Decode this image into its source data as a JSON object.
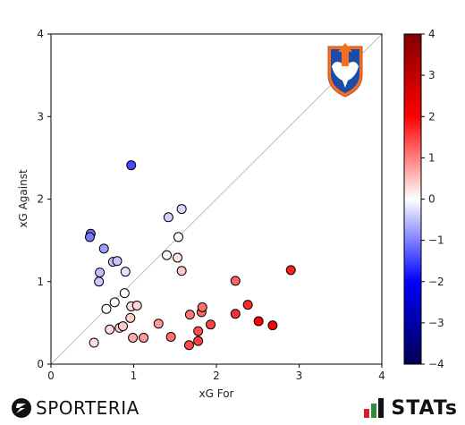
{
  "chart_data": {
    "type": "scatter",
    "title": "",
    "xlabel": "xG For",
    "ylabel": "xG Against",
    "xlim": [
      0,
      4
    ],
    "ylim": [
      0,
      4
    ],
    "xticks": [
      "0",
      "1",
      "2",
      "3",
      "4"
    ],
    "yticks": [
      "0",
      "1",
      "2",
      "3",
      "4"
    ],
    "diagonal_reference_line": true,
    "grid": false,
    "color_encoding": "xG For minus xG Against",
    "colorbar": {
      "range": [
        -4,
        4
      ],
      "ticks": [
        "4",
        "3",
        "2",
        "1",
        "0",
        "−1",
        "−2",
        "−3",
        "−4"
      ],
      "colormap": "seismic"
    },
    "points": [
      {
        "x": 0.97,
        "y": 2.41
      },
      {
        "x": 1.42,
        "y": 1.78
      },
      {
        "x": 1.58,
        "y": 1.88
      },
      {
        "x": 0.48,
        "y": 1.58
      },
      {
        "x": 0.47,
        "y": 1.54
      },
      {
        "x": 0.64,
        "y": 1.4
      },
      {
        "x": 0.75,
        "y": 1.24
      },
      {
        "x": 0.8,
        "y": 1.25
      },
      {
        "x": 0.59,
        "y": 1.11
      },
      {
        "x": 0.9,
        "y": 1.12
      },
      {
        "x": 0.58,
        "y": 1.0
      },
      {
        "x": 1.4,
        "y": 1.32
      },
      {
        "x": 1.54,
        "y": 1.54
      },
      {
        "x": 1.53,
        "y": 1.29
      },
      {
        "x": 1.58,
        "y": 1.13
      },
      {
        "x": 0.89,
        "y": 0.86
      },
      {
        "x": 0.77,
        "y": 0.75
      },
      {
        "x": 0.67,
        "y": 0.67
      },
      {
        "x": 0.97,
        "y": 0.7
      },
      {
        "x": 1.04,
        "y": 0.71
      },
      {
        "x": 0.96,
        "y": 0.56
      },
      {
        "x": 0.71,
        "y": 0.42
      },
      {
        "x": 0.83,
        "y": 0.44
      },
      {
        "x": 0.87,
        "y": 0.46
      },
      {
        "x": 0.52,
        "y": 0.26
      },
      {
        "x": 0.99,
        "y": 0.32
      },
      {
        "x": 1.12,
        "y": 0.32
      },
      {
        "x": 1.3,
        "y": 0.49
      },
      {
        "x": 1.45,
        "y": 0.33
      },
      {
        "x": 1.67,
        "y": 0.23
      },
      {
        "x": 1.78,
        "y": 0.28
      },
      {
        "x": 1.78,
        "y": 0.4
      },
      {
        "x": 1.68,
        "y": 0.6
      },
      {
        "x": 1.82,
        "y": 0.63
      },
      {
        "x": 1.83,
        "y": 0.69
      },
      {
        "x": 1.93,
        "y": 0.48
      },
      {
        "x": 2.23,
        "y": 1.01
      },
      {
        "x": 2.23,
        "y": 0.61
      },
      {
        "x": 2.38,
        "y": 0.72
      },
      {
        "x": 2.51,
        "y": 0.52
      },
      {
        "x": 2.68,
        "y": 0.47
      },
      {
        "x": 2.9,
        "y": 1.14
      }
    ]
  },
  "branding": {
    "left_logo_text": "SPORTERIA",
    "right_logo_text": "STATs",
    "team_crest_icon": "team-crest-icon"
  }
}
